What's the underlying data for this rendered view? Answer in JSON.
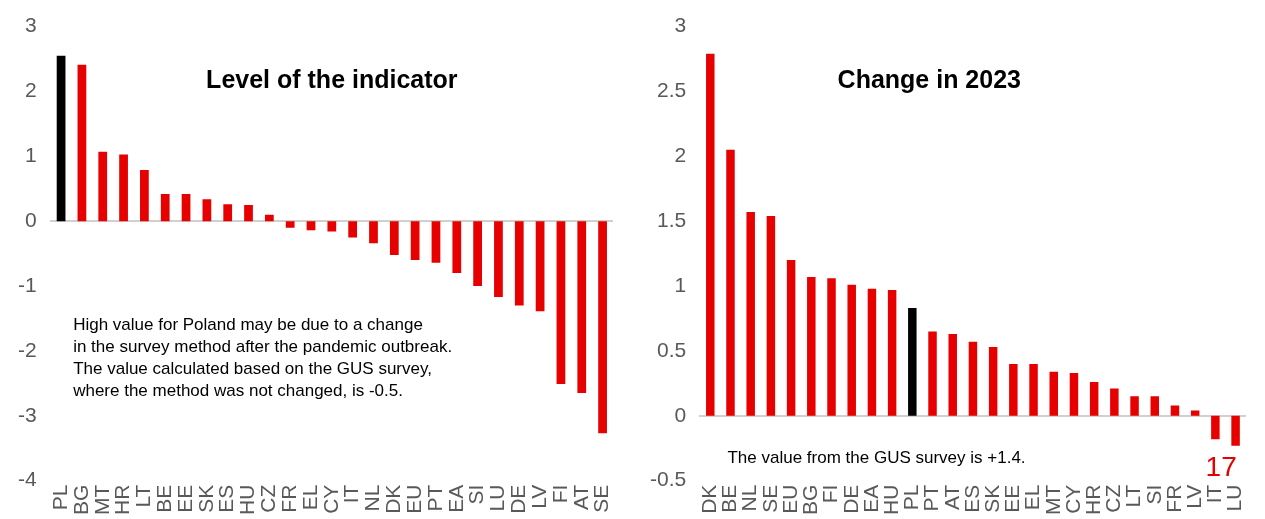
{
  "chart_data": [
    {
      "type": "bar",
      "title": "Level of the indicator",
      "categories": [
        "PL",
        "BG",
        "MT",
        "HR",
        "LT",
        "BE",
        "EE",
        "SK",
        "ES",
        "HU",
        "CZ",
        "FR",
        "EL",
        "CY",
        "IT",
        "NL",
        "DK",
        "EU",
        "PT",
        "EA",
        "SI",
        "LU",
        "DE",
        "LV",
        "FI",
        "AT",
        "SE"
      ],
      "values": [
        2.55,
        2.41,
        1.07,
        1.03,
        0.79,
        0.42,
        0.42,
        0.34,
        0.26,
        0.25,
        0.1,
        -0.1,
        -0.14,
        -0.16,
        -0.25,
        -0.34,
        -0.52,
        -0.6,
        -0.64,
        -0.8,
        -1.0,
        -1.17,
        -1.3,
        -1.39,
        -2.51,
        -2.65,
        -3.27
      ],
      "colors": [
        "#000000",
        "#e60000",
        "#e60000",
        "#e60000",
        "#e60000",
        "#e60000",
        "#e60000",
        "#e60000",
        "#e60000",
        "#e60000",
        "#e60000",
        "#e60000",
        "#e60000",
        "#e60000",
        "#e60000",
        "#e60000",
        "#e60000",
        "#e60000",
        "#e60000",
        "#e60000",
        "#e60000",
        "#e60000",
        "#e60000",
        "#e60000",
        "#e60000",
        "#e60000",
        "#e60000"
      ],
      "ylim": [
        -4,
        3
      ],
      "yticks": [
        -4,
        -3,
        -2,
        -1,
        0,
        1,
        2,
        3
      ],
      "legend": false,
      "annotations": [
        "High value for Poland may be due to a change\nin the survey method after the pandemic outbreak.\nThe value calculated based on the GUS survey,\nwhere the method was not changed, is -0.5."
      ]
    },
    {
      "type": "bar",
      "title": "Change in 2023",
      "categories": [
        "DK",
        "BE",
        "NL",
        "SE",
        "EU",
        "BG",
        "FI",
        "DE",
        "EA",
        "HU",
        "PL",
        "PT",
        "AT",
        "ES",
        "SK",
        "EE",
        "EL",
        "MT",
        "CY",
        "HR",
        "CZ",
        "LT",
        "SI",
        "FR",
        "LV",
        "IT",
        "LU"
      ],
      "values": [
        2.79,
        2.05,
        1.57,
        1.54,
        1.2,
        1.07,
        1.06,
        1.01,
        0.98,
        0.97,
        0.83,
        0.65,
        0.63,
        0.57,
        0.53,
        0.4,
        0.4,
        0.34,
        0.33,
        0.26,
        0.21,
        0.15,
        0.15,
        0.08,
        0.04,
        -0.18,
        -0.23
      ],
      "colors": [
        "#e60000",
        "#e60000",
        "#e60000",
        "#e60000",
        "#e60000",
        "#e60000",
        "#e60000",
        "#e60000",
        "#e60000",
        "#e60000",
        "#000000",
        "#e60000",
        "#e60000",
        "#e60000",
        "#e60000",
        "#e60000",
        "#e60000",
        "#e60000",
        "#e60000",
        "#e60000",
        "#e60000",
        "#e60000",
        "#e60000",
        "#e60000",
        "#e60000",
        "#e60000",
        "#e60000"
      ],
      "ylim": [
        -0.5,
        3
      ],
      "yticks": [
        -0.5,
        0,
        0.5,
        1,
        1.5,
        2,
        2.5,
        3
      ],
      "legend": false,
      "annotations": [
        "The value from the GUS survey is +1.4.",
        "17"
      ]
    }
  ]
}
